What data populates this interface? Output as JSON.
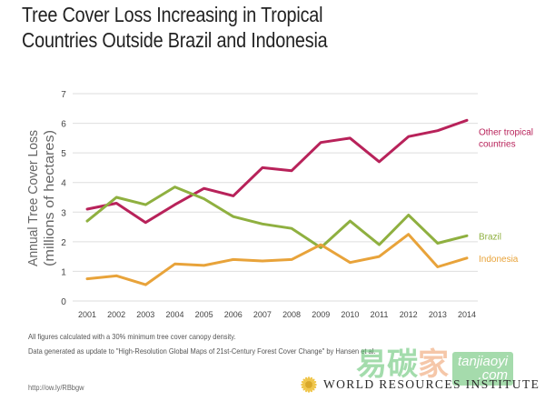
{
  "title": {
    "line1": "Tree Cover Loss Increasing in Tropical",
    "line2": "Countries Outside Brazil and Indonesia"
  },
  "notes": {
    "line1": "All figures calculated with a 30% minimum tree cover canopy density.",
    "line2": "Data generated as update to \"High-Resolution Global Maps of 21st-Century Forest Cover Change\" by Hansen et al.",
    "url": "http://ow.ly/RBbgw"
  },
  "branding": {
    "logo_text": "WORLD RESOURCES INSTITUTE",
    "logo_icon": "sunflower-icon",
    "watermark_cn": [
      "易",
      "碳",
      "家"
    ],
    "watermark_latin_top": "tanjiaoyi",
    "watermark_latin_bottom": ".com"
  },
  "colors": {
    "other": "#b8225a",
    "brazil": "#8fb040",
    "indonesia": "#e8a33a",
    "grid": "#dedede",
    "axis_text": "#444444"
  },
  "chart_data": {
    "type": "line",
    "title": "Tree Cover Loss Increasing in Tropical Countries Outside Brazil and Indonesia",
    "xlabel": "",
    "ylabel": "Annual Tree Cover Loss (millions of hectares)",
    "ylabel_line1": "Annual Tree Cover Loss",
    "ylabel_line2": "(millions of hectares)",
    "x": [
      "2001",
      "2002",
      "2003",
      "2004",
      "2005",
      "2006",
      "2007",
      "2008",
      "2009",
      "2010",
      "2011",
      "2012",
      "2013",
      "2014"
    ],
    "ylim": [
      0,
      7
    ],
    "yticks": [
      "0",
      "1",
      "2",
      "3",
      "4",
      "5",
      "6",
      "7"
    ],
    "grid": true,
    "legend": "inline-right",
    "series": [
      {
        "name": "Other tropical countries",
        "label_line1": "Other tropical",
        "label_line2": "countries",
        "color_key": "other",
        "values": [
          3.1,
          3.3,
          2.65,
          3.25,
          3.8,
          3.55,
          4.5,
          4.4,
          5.35,
          5.5,
          4.7,
          5.55,
          5.75,
          6.1
        ]
      },
      {
        "name": "Brazil",
        "label_line1": "Brazil",
        "label_line2": "",
        "color_key": "brazil",
        "values": [
          2.7,
          3.5,
          3.25,
          3.85,
          3.45,
          2.85,
          2.6,
          2.45,
          1.8,
          2.7,
          1.9,
          2.9,
          1.95,
          2.2
        ]
      },
      {
        "name": "Indonesia",
        "label_line1": "Indonesia",
        "label_line2": "",
        "color_key": "indonesia",
        "values": [
          0.75,
          0.85,
          0.55,
          1.25,
          1.2,
          1.4,
          1.35,
          1.4,
          1.9,
          1.3,
          1.5,
          2.25,
          1.15,
          1.45
        ]
      }
    ]
  }
}
